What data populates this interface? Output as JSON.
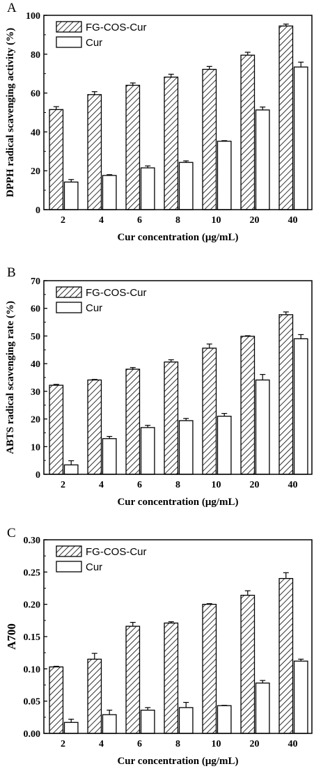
{
  "chart_data": [
    {
      "panel": "A",
      "type": "bar",
      "categories": [
        "2",
        "4",
        "6",
        "8",
        "10",
        "20",
        "40"
      ],
      "xlabel": "Cur concentration (μg/mL)",
      "ylabel": "DPPH radical scavenging activity (%)",
      "ylim": [
        0,
        100
      ],
      "yticks": [
        "0",
        "20",
        "40",
        "60",
        "80",
        "100"
      ],
      "legend_position": "top-left",
      "series": [
        {
          "name": "FG-COS-Cur",
          "pattern": "hatched",
          "values": [
            51.5,
            59.2,
            64.0,
            68.2,
            72.2,
            79.5,
            94.5
          ],
          "errors": [
            1.5,
            1.5,
            1.2,
            1.5,
            1.5,
            1.5,
            1.0
          ]
        },
        {
          "name": "Cur",
          "pattern": "open",
          "values": [
            14.2,
            17.6,
            21.5,
            24.3,
            35.2,
            51.3,
            73.4
          ],
          "errors": [
            1.3,
            0.4,
            1.0,
            0.8,
            0.3,
            1.5,
            2.5
          ]
        }
      ]
    },
    {
      "panel": "B",
      "type": "bar",
      "categories": [
        "2",
        "4",
        "6",
        "8",
        "10",
        "20",
        "40"
      ],
      "xlabel": "Cur concentration (μg/mL)",
      "ylabel": "ABTS radical scavenging rate (%)",
      "ylim": [
        0,
        70
      ],
      "yticks": [
        "0",
        "10",
        "20",
        "30",
        "40",
        "50",
        "60",
        "70"
      ],
      "legend_position": "top-left",
      "series": [
        {
          "name": "FG-COS-Cur",
          "pattern": "hatched",
          "values": [
            32.2,
            34.1,
            38.0,
            40.6,
            45.6,
            49.9,
            57.7
          ],
          "errors": [
            0.3,
            0.2,
            0.6,
            0.8,
            1.5,
            0.2,
            1.0
          ]
        },
        {
          "name": "Cur",
          "pattern": "open",
          "values": [
            3.4,
            12.9,
            16.9,
            19.4,
            21.0,
            34.1,
            49.0
          ],
          "errors": [
            1.5,
            0.8,
            0.8,
            0.8,
            1.0,
            2.0,
            1.5
          ]
        }
      ]
    },
    {
      "panel": "C",
      "type": "bar",
      "categories": [
        "2",
        "4",
        "6",
        "8",
        "10",
        "20",
        "40"
      ],
      "xlabel": "Cur concentration (μg/mL)",
      "ylabel": "A700",
      "ylim": [
        0,
        0.3
      ],
      "yticks": [
        "0.00",
        "0.05",
        "0.10",
        "0.15",
        "0.20",
        "0.25",
        "0.30"
      ],
      "legend_position": "top-left",
      "series": [
        {
          "name": "FG-COS-Cur",
          "pattern": "hatched",
          "values": [
            0.103,
            0.115,
            0.166,
            0.171,
            0.2,
            0.214,
            0.24
          ],
          "errors": [
            0.001,
            0.009,
            0.006,
            0.002,
            0.001,
            0.007,
            0.009
          ]
        },
        {
          "name": "Cur",
          "pattern": "open",
          "values": [
            0.017,
            0.029,
            0.036,
            0.04,
            0.043,
            0.078,
            0.112
          ],
          "errors": [
            0.005,
            0.007,
            0.004,
            0.008,
            0.0005,
            0.004,
            0.003
          ]
        }
      ]
    }
  ]
}
